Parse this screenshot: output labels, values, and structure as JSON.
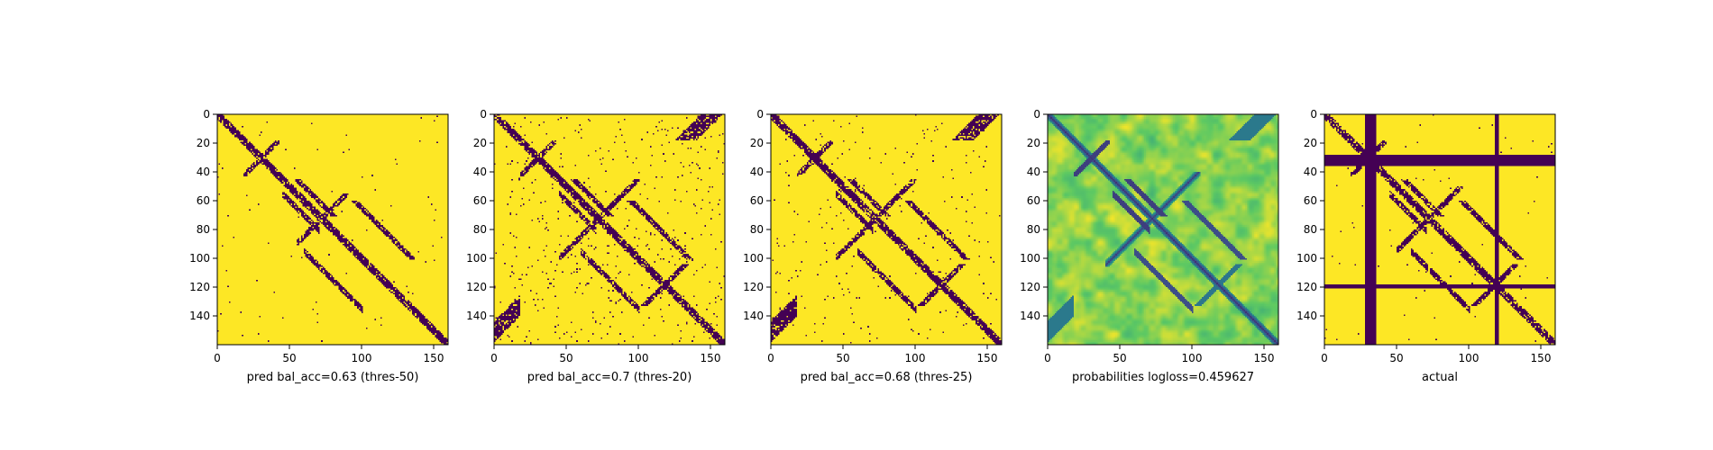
{
  "figure": {
    "background": "#ffffff"
  },
  "colors": {
    "high": "#fde725",
    "low": "#440154",
    "viridis_stops": [
      "#440154",
      "#3b528b",
      "#21918c",
      "#5ec962",
      "#fde725"
    ]
  },
  "chart_data": [
    {
      "type": "heatmap",
      "title": "",
      "xlabel": "pred bal_acc=0.63 (thres-50)",
      "ylabel": "",
      "matrix_size": 160,
      "xlim": [
        0,
        160
      ],
      "ylim": [
        160,
        0
      ],
      "xticks": [
        0,
        50,
        100,
        150
      ],
      "yticks": [
        0,
        20,
        40,
        60,
        80,
        100,
        120,
        140
      ],
      "colormap": "viridis",
      "binary": true,
      "features": {
        "diagonal": true,
        "anti_diagonal_center": 72,
        "anti_diagonal_extent": [
          55,
          90
        ],
        "second_cross_center": 118,
        "second_cross_strength": "weak",
        "arm_near_30": "partial",
        "scattered_noise": "low"
      }
    },
    {
      "type": "heatmap",
      "title": "",
      "xlabel": "pred bal_acc=0.7 (thres-20)",
      "ylabel": "",
      "matrix_size": 160,
      "xlim": [
        0,
        160
      ],
      "ylim": [
        160,
        0
      ],
      "xticks": [
        0,
        50,
        100,
        150
      ],
      "yticks": [
        0,
        20,
        40,
        60,
        80,
        100,
        120,
        140
      ],
      "colormap": "viridis",
      "binary": true,
      "features": {
        "diagonal": true,
        "anti_diagonal_center": 72,
        "anti_diagonal_extent": [
          45,
          100
        ],
        "second_cross_center": 118,
        "second_cross_strength": "strong",
        "arm_near_30": "strong",
        "scattered_noise": "high"
      }
    },
    {
      "type": "heatmap",
      "title": "",
      "xlabel": "pred bal_acc=0.68 (thres-25)",
      "ylabel": "",
      "matrix_size": 160,
      "xlim": [
        0,
        160
      ],
      "ylim": [
        160,
        0
      ],
      "xticks": [
        0,
        50,
        100,
        150
      ],
      "yticks": [
        0,
        20,
        40,
        60,
        80,
        100,
        120,
        140
      ],
      "colormap": "viridis",
      "binary": true,
      "features": {
        "diagonal": true,
        "anti_diagonal_center": 72,
        "anti_diagonal_extent": [
          45,
          100
        ],
        "second_cross_center": 118,
        "second_cross_strength": "medium",
        "arm_near_30": "strong",
        "scattered_noise": "medium"
      }
    },
    {
      "type": "heatmap",
      "title": "",
      "xlabel": "probabilities logloss=0.459627",
      "ylabel": "",
      "matrix_size": 160,
      "xlim": [
        0,
        160
      ],
      "ylim": [
        160,
        0
      ],
      "xticks": [
        0,
        50,
        100,
        150
      ],
      "yticks": [
        0,
        20,
        40,
        60,
        80,
        100,
        120,
        140
      ],
      "colormap": "viridis",
      "binary": false,
      "value_range": [
        0,
        1
      ],
      "features": {
        "diagonal": true,
        "anti_diagonal_center": 72,
        "anti_diagonal_extent": [
          40,
          105
        ],
        "second_cross_center": 118,
        "second_cross_strength": "medium",
        "arm_near_30": "strong",
        "scattered_noise": "continuous"
      }
    },
    {
      "type": "heatmap",
      "title": "",
      "xlabel": "actual",
      "ylabel": "",
      "matrix_size": 160,
      "xlim": [
        0,
        160
      ],
      "ylim": [
        160,
        0
      ],
      "xticks": [
        0,
        50,
        100,
        150
      ],
      "yticks": [
        0,
        20,
        40,
        60,
        80,
        100,
        120,
        140
      ],
      "colormap": "viridis",
      "binary": true,
      "features": {
        "diagonal": true,
        "anti_diagonal_center": 72,
        "anti_diagonal_extent": [
          50,
          95
        ],
        "second_cross_center": 118,
        "second_cross_strength": "strong",
        "arm_near_30": "partial",
        "scattered_noise": "low",
        "bands": [
          {
            "orientation": "vertical",
            "range": [
              28,
              35
            ]
          },
          {
            "orientation": "horizontal",
            "range": [
              28,
              35
            ]
          },
          {
            "orientation": "vertical",
            "range": [
              118,
              120
            ]
          },
          {
            "orientation": "horizontal",
            "range": [
              118,
              120
            ]
          }
        ]
      }
    }
  ]
}
